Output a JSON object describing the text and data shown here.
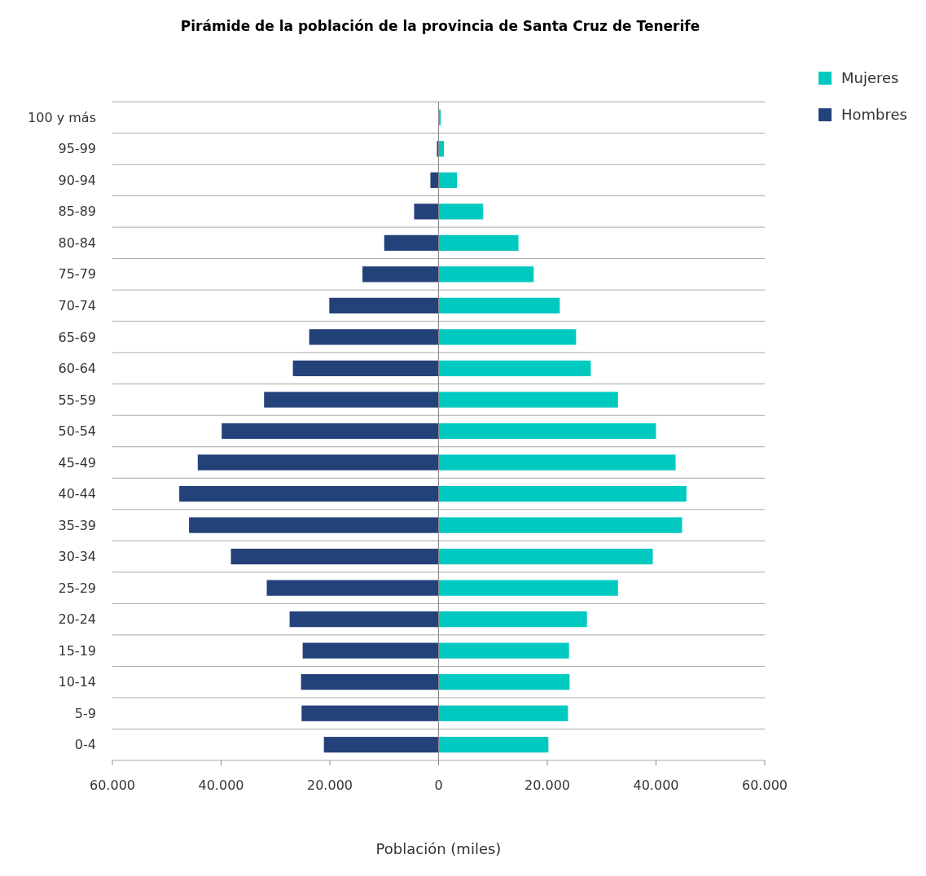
{
  "chart_data": {
    "type": "bar",
    "orientation": "horizontal",
    "title": "Pirámide de la población de la provincia de Santa Cruz de Tenerife",
    "xlabel": "Población (miles)",
    "categories": [
      "100 y más",
      "95-99",
      "90-94",
      "85-89",
      "80-84",
      "75-79",
      "70-74",
      "65-69",
      "60-64",
      "55-59",
      "50-54",
      "45-49",
      "40-44",
      "35-39",
      "30-34",
      "25-29",
      "20-24",
      "15-19",
      "10-14",
      "5-9",
      "0-4"
    ],
    "series": [
      {
        "name": "Mujeres",
        "color": "#00c9c0",
        "values": [
          400,
          1000,
          3400,
          8200,
          14700,
          17500,
          22300,
          25300,
          28000,
          33000,
          40000,
          43600,
          45600,
          44800,
          39400,
          33000,
          27300,
          24000,
          24100,
          23800,
          20200
        ]
      },
      {
        "name": "Hombres",
        "color": "#24427a",
        "values": [
          null,
          -300,
          -1500,
          -4500,
          -10000,
          -14000,
          -20100,
          -23800,
          -26800,
          -32100,
          -39900,
          -44300,
          -47700,
          -45900,
          -38200,
          -31600,
          -27400,
          -25000,
          -25300,
          -25200,
          -21100
        ]
      }
    ],
    "xlim": [
      -60000,
      60000
    ],
    "xticks": [
      {
        "value": -60000,
        "label": "60.000"
      },
      {
        "value": -40000,
        "label": "40.000"
      },
      {
        "value": -20000,
        "label": "20.000"
      },
      0,
      {
        "value": 20000,
        "label": "20.000"
      },
      {
        "value": 40000,
        "label": "40.000"
      },
      {
        "value": 60000,
        "label": "60.000"
      }
    ],
    "grid": "y",
    "legend": "top right",
    "stacked": true
  }
}
